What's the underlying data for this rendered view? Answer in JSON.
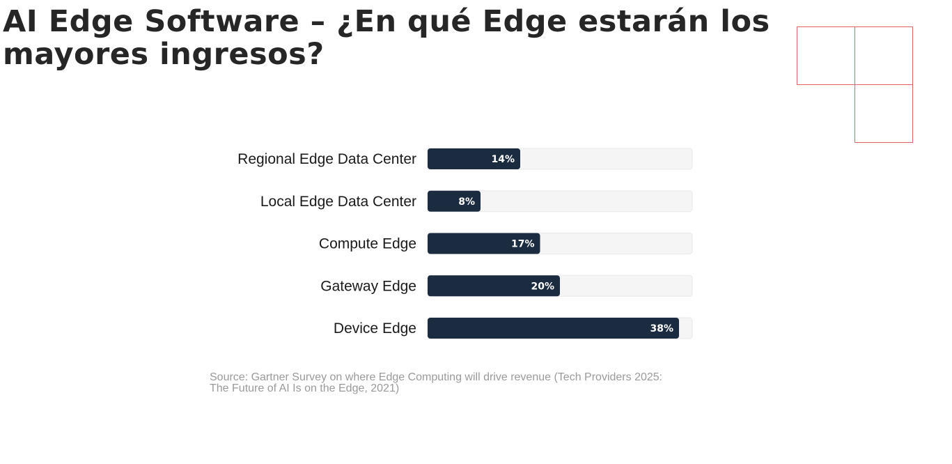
{
  "slide": {
    "title": "AI Edge Software – ¿En qué Edge estarán los mayores ingresos?",
    "source": "Source: Gartner Survey on where Edge Computing will drive revenue (Tech Providers 2025: The Future of AI Is on the Edge, 2021)"
  },
  "colors": {
    "bar": "#1b2b40",
    "track": "#f5f5f5",
    "track_border": "#e8e8e8",
    "accent": "#e06666",
    "title": "#262626"
  },
  "chart_data": {
    "type": "bar",
    "orientation": "horizontal",
    "categories": [
      "Regional Edge Data Center",
      "Local Edge Data Center",
      "Compute Edge",
      "Gateway Edge",
      "Device Edge"
    ],
    "values": [
      14,
      8,
      17,
      20,
      38
    ],
    "value_labels": [
      "14%",
      "8%",
      "17%",
      "20%",
      "38%"
    ],
    "xlim": [
      0,
      40
    ],
    "unit": "%",
    "title": "",
    "xlabel": "",
    "ylabel": "",
    "grid": false,
    "legend": "none"
  }
}
